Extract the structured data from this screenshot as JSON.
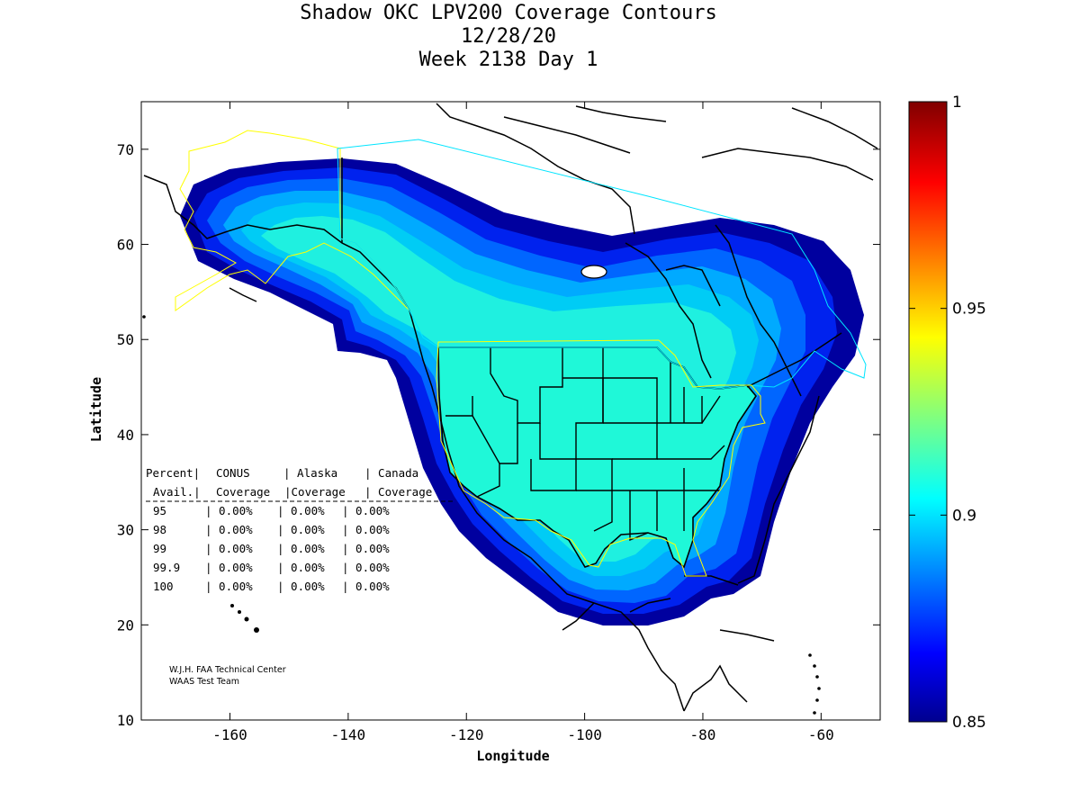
{
  "title": {
    "line1": "Shadow OKC LPV200 Coverage Contours",
    "line2": "12/28/20",
    "line3": "Week 2138 Day 1"
  },
  "axes": {
    "xlabel": "Longitude",
    "ylabel": "Latitude",
    "x_ticks": [
      "-160",
      "-140",
      "-120",
      "-100",
      "-80",
      "-60"
    ],
    "y_ticks": [
      "10",
      "20",
      "30",
      "40",
      "50",
      "60",
      "70"
    ],
    "xlim": [
      -175,
      -50
    ],
    "ylim": [
      10,
      75
    ]
  },
  "colorbar": {
    "ticks": [
      "1",
      "0.95",
      "0.9",
      "0.85"
    ],
    "range": [
      0.85,
      1
    ],
    "colormap": "jet"
  },
  "coverage_table": {
    "header1": [
      "Percent|",
      "CONUS",
      "| Alaska",
      "| Canada"
    ],
    "header2": [
      "Avail.|",
      "Coverage",
      "|Coverage",
      "| Coverage"
    ],
    "rows": [
      [
        "95",
        "0.00%",
        "0.00%",
        "0.00%"
      ],
      [
        "98",
        "0.00%",
        "0.00%",
        "0.00%"
      ],
      [
        "99",
        "0.00%",
        "0.00%",
        "0.00%"
      ],
      [
        "99.9",
        "0.00%",
        "0.00%",
        "0.00%"
      ],
      [
        "100",
        "0.00%",
        "0.00%",
        "0.00%"
      ]
    ]
  },
  "credits": {
    "line1": "W.J.H. FAA Technical Center",
    "line2": "WAAS Test Team"
  },
  "colors": {
    "level_lowest": "#00009f",
    "level_low": "#0033ff",
    "level_mid": "#00aaff",
    "level_high": "#1fffd8",
    "conus_fill": "#1ff8d8",
    "service_boundary_yellow": "#ffff00",
    "service_boundary_cyan": "#00e5ff"
  }
}
